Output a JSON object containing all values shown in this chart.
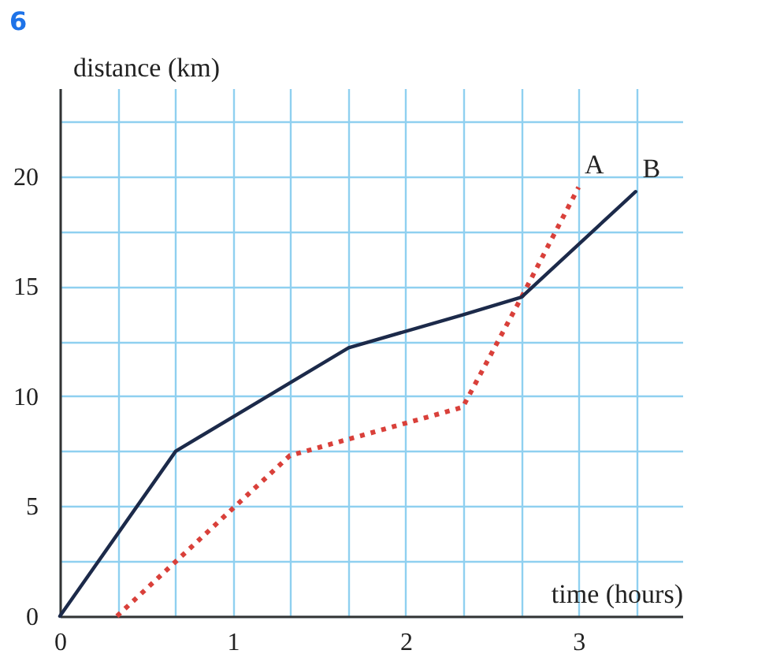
{
  "chart_data": {
    "type": "line",
    "xlabel": "time (hours)",
    "ylabel": "distance (km)",
    "annotations": [
      "6"
    ],
    "series": [
      {
        "name": "A",
        "color": "#d9403a",
        "line_style": "dotted",
        "x": [
          0.33,
          1.33,
          2.33,
          2.67,
          3
        ],
        "values": [
          0,
          7.3,
          9.5,
          14.5,
          19.5
        ]
      },
      {
        "name": "B",
        "color": "#1c2a4a",
        "line_style": "solid",
        "x": [
          0,
          0.67,
          1.67,
          2.33,
          2.67,
          3.33
        ],
        "values": [
          0,
          7.5,
          12.2,
          13.7,
          14.5,
          19.3
        ]
      }
    ],
    "xlim": [
      0,
      3.6
    ],
    "ylim": [
      0,
      24
    ],
    "xticks": [
      0,
      {
        "value": 0.333,
        "label": null
      },
      {
        "value": 0.667,
        "label": null
      },
      1,
      {
        "value": 1.333,
        "label": null
      },
      {
        "value": 1.667,
        "label": null
      },
      2,
      {
        "value": 2.333,
        "label": null
      },
      {
        "value": 2.667,
        "label": null
      },
      3,
      {
        "value": 3.333,
        "label": null
      }
    ],
    "yticks": [
      0,
      {
        "value": 2.5,
        "label": null
      },
      5,
      {
        "value": 7.5,
        "label": null
      },
      10,
      {
        "value": 12.5,
        "label": null
      },
      15,
      {
        "value": 17.5,
        "label": null
      },
      20,
      {
        "value": 22.5,
        "label": null
      }
    ],
    "grid": true,
    "marker": "none"
  }
}
